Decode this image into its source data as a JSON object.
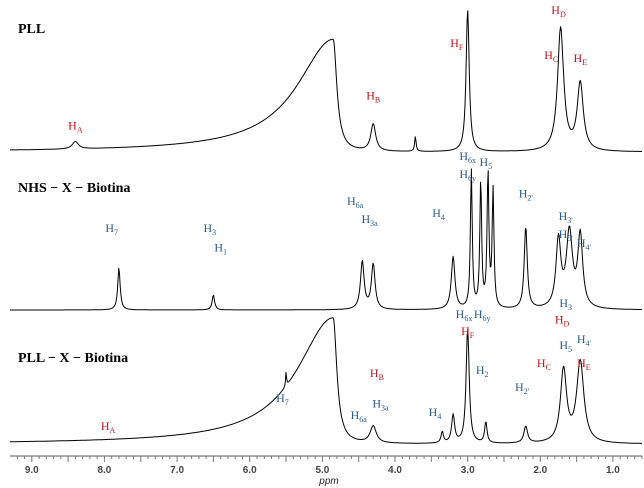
{
  "chart_data": {
    "type": "line",
    "xlabel": "ppm",
    "xlim": [
      9.3,
      0.6
    ],
    "x_reversed": true,
    "ticks": [
      9.0,
      8.0,
      7.0,
      6.0,
      5.0,
      4.0,
      3.0,
      2.0,
      1.0
    ],
    "tick_labels": [
      "9.0",
      "8.0",
      "7.0",
      "6.0",
      "5.0",
      "4.0",
      "3.0",
      "2.0",
      "1.0"
    ],
    "colors": {
      "pll_label": "#c0141c",
      "biotin_label": "#2d5a8c",
      "trace": "#000000"
    },
    "spectra": [
      {
        "name": "PLL",
        "peaks": [
          {
            "ppm": 8.4,
            "h": 0.05,
            "w": 0.05
          },
          {
            "ppm": 4.85,
            "h": 0.75,
            "w": 0.06,
            "tail": true
          },
          {
            "ppm": 4.3,
            "h": 0.18,
            "w": 0.04
          },
          {
            "ppm": 3.72,
            "h": 0.1,
            "w": 0.012
          },
          {
            "ppm": 3.0,
            "h": 0.95,
            "w": 0.025
          },
          {
            "ppm": 1.72,
            "h": 0.82,
            "w": 0.05
          },
          {
            "ppm": 1.45,
            "h": 0.45,
            "w": 0.05
          }
        ],
        "labels": [
          {
            "base": "H",
            "sub": "A",
            "ppm": 8.4,
            "level": 0.15,
            "color": "red"
          },
          {
            "base": "H",
            "sub": "B",
            "ppm": 4.3,
            "level": 0.35,
            "color": "red"
          },
          {
            "base": "H",
            "sub": "F",
            "ppm": 3.15,
            "level": 0.7,
            "color": "red"
          },
          {
            "base": "H",
            "sub": "D",
            "ppm": 1.75,
            "level": 0.92,
            "color": "red"
          },
          {
            "base": "H",
            "sub": "C",
            "ppm": 1.85,
            "level": 0.62,
            "color": "red"
          },
          {
            "base": "H",
            "sub": "E",
            "ppm": 1.45,
            "level": 0.6,
            "color": "red"
          }
        ]
      },
      {
        "name": "NHS − X − Biotina",
        "peaks": [
          {
            "ppm": 7.8,
            "h": 0.28,
            "w": 0.02
          },
          {
            "ppm": 6.5,
            "h": 0.1,
            "w": 0.02
          },
          {
            "ppm": 4.45,
            "h": 0.32,
            "w": 0.03
          },
          {
            "ppm": 4.3,
            "h": 0.3,
            "w": 0.03
          },
          {
            "ppm": 3.2,
            "h": 0.35,
            "w": 0.03
          },
          {
            "ppm": 2.95,
            "h": 0.92,
            "w": 0.015
          },
          {
            "ppm": 2.82,
            "h": 0.85,
            "w": 0.015
          },
          {
            "ppm": 2.72,
            "h": 0.9,
            "w": 0.015
          },
          {
            "ppm": 2.65,
            "h": 0.78,
            "w": 0.015
          },
          {
            "ppm": 2.2,
            "h": 0.55,
            "w": 0.025
          },
          {
            "ppm": 1.75,
            "h": 0.45,
            "w": 0.04
          },
          {
            "ppm": 1.6,
            "h": 0.5,
            "w": 0.05
          },
          {
            "ppm": 1.45,
            "h": 0.48,
            "w": 0.04
          }
        ],
        "labels": [
          {
            "base": "H",
            "sub": "7",
            "ppm": 7.9,
            "level": 0.52,
            "color": "blue"
          },
          {
            "base": "H",
            "sub": "3",
            "ppm": 6.55,
            "level": 0.52,
            "color": "blue"
          },
          {
            "base": "H",
            "sub": "1",
            "ppm": 6.4,
            "level": 0.39,
            "color": "blue"
          },
          {
            "base": "H",
            "sub": "6a",
            "ppm": 4.55,
            "level": 0.7,
            "color": "blue"
          },
          {
            "base": "H",
            "sub": "3a",
            "ppm": 4.35,
            "level": 0.58,
            "color": "blue"
          },
          {
            "base": "H",
            "sub": "4",
            "ppm": 3.4,
            "level": 0.62,
            "color": "blue"
          },
          {
            "base": "H",
            "sub": "6x",
            "ppm": 3.0,
            "level": 1.0,
            "color": "blue"
          },
          {
            "base": "H",
            "sub": "6y",
            "ppm": 3.0,
            "level": 0.88,
            "color": "blue"
          },
          {
            "base": "H",
            "sub": "5",
            "ppm": 2.75,
            "level": 0.96,
            "color": "blue"
          },
          {
            "base": "H",
            "sub": "2'",
            "ppm": 2.2,
            "level": 0.75,
            "color": "blue"
          },
          {
            "base": "H",
            "sub": "3'",
            "ppm": 1.65,
            "level": 0.6,
            "color": "blue"
          },
          {
            "base": "H",
            "sub": "5'",
            "ppm": 1.65,
            "level": 0.48,
            "color": "blue"
          },
          {
            "base": "H",
            "sub": "4'",
            "ppm": 1.4,
            "level": 0.42,
            "color": "blue"
          }
        ]
      },
      {
        "name": "PLL − X − Biotina",
        "peaks": [
          {
            "ppm": 5.5,
            "h": 0.1,
            "w": 0.008
          },
          {
            "ppm": 4.85,
            "h": 0.9,
            "w": 0.06,
            "tail": true
          },
          {
            "ppm": 4.3,
            "h": 0.12,
            "w": 0.05
          },
          {
            "ppm": 3.35,
            "h": 0.08,
            "w": 0.02
          },
          {
            "ppm": 3.2,
            "h": 0.2,
            "w": 0.025
          },
          {
            "ppm": 3.0,
            "h": 0.82,
            "w": 0.025
          },
          {
            "ppm": 2.75,
            "h": 0.15,
            "w": 0.02
          },
          {
            "ppm": 2.2,
            "h": 0.12,
            "w": 0.03
          },
          {
            "ppm": 1.68,
            "h": 0.52,
            "w": 0.05
          },
          {
            "ppm": 1.45,
            "h": 0.58,
            "w": 0.06
          }
        ],
        "labels": [
          {
            "base": "H",
            "sub": "A",
            "ppm": 7.95,
            "level": 0.1,
            "color": "red"
          },
          {
            "base": "H",
            "sub": "7",
            "ppm": 5.55,
            "level": 0.3,
            "color": "blue"
          },
          {
            "base": "H",
            "sub": "B",
            "ppm": 4.25,
            "level": 0.48,
            "color": "red"
          },
          {
            "base": "H",
            "sub": "6a",
            "ppm": 4.5,
            "level": 0.18,
            "color": "blue"
          },
          {
            "base": "H",
            "sub": "3a",
            "ppm": 4.2,
            "level": 0.26,
            "color": "blue"
          },
          {
            "base": "H",
            "sub": "4",
            "ppm": 3.45,
            "level": 0.2,
            "color": "blue"
          },
          {
            "base": "H",
            "sub": "6x",
            "ppm": 3.05,
            "level": 0.9,
            "color": "blue"
          },
          {
            "base": "H",
            "sub": "6y",
            "ppm": 2.8,
            "level": 0.9,
            "color": "blue"
          },
          {
            "base": "H",
            "sub": "F",
            "ppm": 3.0,
            "level": 0.78,
            "color": "red"
          },
          {
            "base": "H",
            "sub": "2",
            "ppm": 2.8,
            "level": 0.5,
            "color": "blue"
          },
          {
            "base": "H",
            "sub": "2'",
            "ppm": 2.25,
            "level": 0.38,
            "color": "blue"
          },
          {
            "base": "H",
            "sub": "3",
            "ppm": 1.65,
            "level": 0.98,
            "color": "blue"
          },
          {
            "base": "H",
            "sub": "D",
            "ppm": 1.7,
            "level": 0.86,
            "color": "red"
          },
          {
            "base": "H",
            "sub": "5",
            "ppm": 1.65,
            "level": 0.68,
            "color": "blue"
          },
          {
            "base": "H",
            "sub": "C",
            "ppm": 1.95,
            "level": 0.55,
            "color": "red"
          },
          {
            "base": "H",
            "sub": "4'",
            "ppm": 1.4,
            "level": 0.72,
            "color": "blue"
          },
          {
            "base": "H",
            "sub": "E",
            "ppm": 1.4,
            "level": 0.55,
            "color": "red"
          }
        ]
      }
    ]
  }
}
